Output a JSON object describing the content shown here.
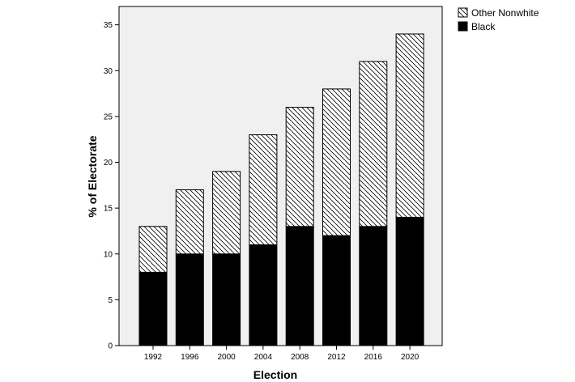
{
  "chart_data": {
    "type": "bar",
    "stacked": true,
    "categories": [
      "1992",
      "1996",
      "2000",
      "2004",
      "2008",
      "2012",
      "2016",
      "2020"
    ],
    "series": [
      {
        "name": "Black",
        "values": [
          8,
          10,
          10,
          11,
          13,
          12,
          13,
          14
        ],
        "fill": "solid",
        "color": "#000000"
      },
      {
        "name": "Other Nonwhite",
        "values": [
          5,
          7,
          9,
          12,
          13,
          16,
          18,
          20
        ],
        "fill": "hatched",
        "color": "#000000"
      }
    ],
    "legend_order": [
      "Other Nonwhite",
      "Black"
    ],
    "xlabel": "Election",
    "ylabel": "% of Electorate",
    "ylim": [
      0,
      37
    ],
    "yticks": [
      0,
      5,
      10,
      15,
      20,
      25,
      30,
      35
    ],
    "grid": false,
    "legend_position": "top-right outside",
    "plot_background": "#f0f0f0"
  }
}
